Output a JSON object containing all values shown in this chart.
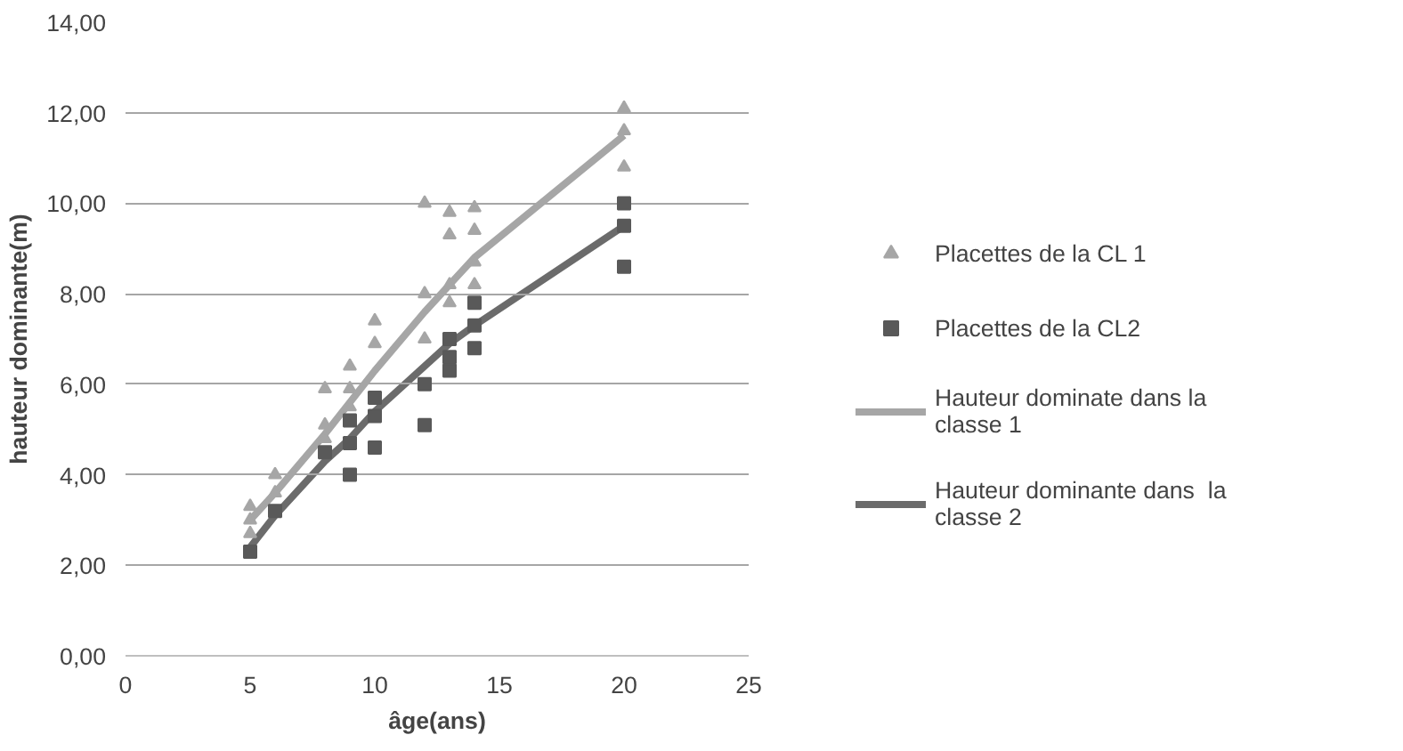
{
  "chart_data": {
    "type": "scatter",
    "xlabel": "âge(ans)",
    "ylabel": "hauteur dominante(m)",
    "xlim": [
      0,
      25
    ],
    "xticks": [
      0,
      5,
      10,
      15,
      20,
      25
    ],
    "ylim": [
      0,
      14
    ],
    "yticks": [
      {
        "value": 0,
        "label": "0,00"
      },
      {
        "value": 2,
        "label": "2,00"
      },
      {
        "value": 4,
        "label": "4,00"
      },
      {
        "value": 6,
        "label": "6,00"
      },
      {
        "value": 8,
        "label": "8,00"
      },
      {
        "value": 10,
        "label": "10,00"
      },
      {
        "value": 12,
        "label": "12,00"
      },
      {
        "value": 14,
        "label": "14,00"
      }
    ],
    "grid": "y",
    "legend": "right",
    "series": [
      {
        "name": "Placettes de la CL 1",
        "marker": "triangle",
        "color": "#a6a6a6",
        "x": [
          5,
          5,
          5,
          6,
          6,
          8,
          8,
          8,
          9,
          9,
          9,
          10,
          10,
          12,
          12,
          12,
          13,
          13,
          13,
          13,
          14,
          14,
          14,
          14,
          20,
          20,
          20
        ],
        "values": [
          3.3,
          3.0,
          2.7,
          4.0,
          3.6,
          5.9,
          5.1,
          4.8,
          6.4,
          5.9,
          5.5,
          7.4,
          6.9,
          10.0,
          8.0,
          7.0,
          9.8,
          9.3,
          8.2,
          7.8,
          9.9,
          9.4,
          8.7,
          8.2,
          12.1,
          11.6,
          10.8
        ]
      },
      {
        "name": "Placettes de la CL2",
        "marker": "square",
        "color": "#595959",
        "x": [
          5,
          6,
          8,
          9,
          9,
          9,
          10,
          10,
          10,
          12,
          12,
          13,
          13,
          13,
          14,
          14,
          14,
          20,
          20,
          20
        ],
        "values": [
          2.3,
          3.2,
          4.5,
          5.2,
          4.7,
          4.0,
          5.7,
          5.3,
          4.6,
          6.0,
          5.1,
          7.0,
          6.6,
          6.3,
          7.8,
          7.3,
          6.8,
          10.0,
          9.5,
          8.6
        ]
      },
      {
        "name": "Hauteur dominate dans la classe 1",
        "type": "line",
        "line_style": "solid",
        "color": "#a6a6a6",
        "x": [
          5,
          6,
          8,
          9,
          10,
          12,
          13,
          14,
          20
        ],
        "values": [
          3.0,
          3.6,
          4.9,
          5.6,
          6.3,
          7.6,
          8.2,
          8.8,
          11.5
        ]
      },
      {
        "name": "Hauteur dominante dans  la classe 2",
        "type": "line",
        "line_style": "solid",
        "color": "#6b6b6b",
        "x": [
          5,
          6,
          8,
          9,
          10,
          12,
          13,
          14,
          20
        ],
        "values": [
          2.4,
          3.1,
          4.3,
          4.8,
          5.4,
          6.4,
          6.9,
          7.3,
          9.5
        ]
      }
    ]
  }
}
